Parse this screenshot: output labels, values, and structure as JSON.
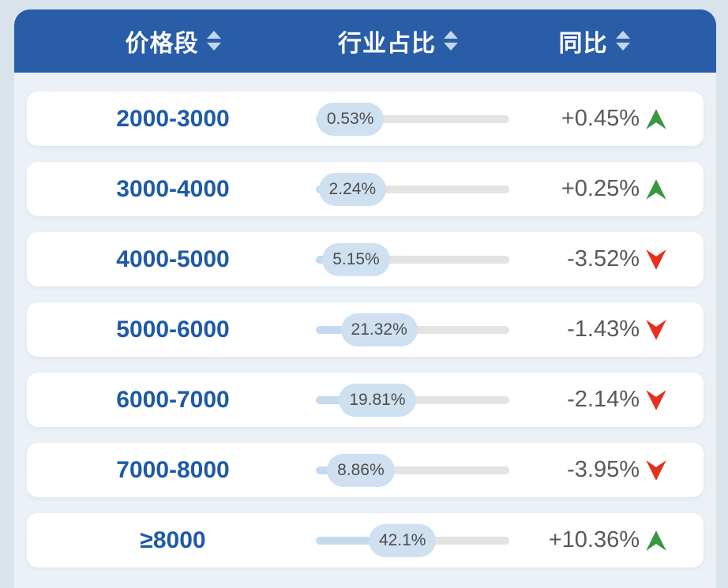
{
  "header": {
    "columns": [
      {
        "label": "价格段"
      },
      {
        "label": "行业占比"
      },
      {
        "label": "同比"
      }
    ]
  },
  "rows": [
    {
      "price_range": "2000-3000",
      "share_label": "0.53%",
      "share_pct": 0.53,
      "yoy_label": "+0.45%",
      "trend": "up"
    },
    {
      "price_range": "3000-4000",
      "share_label": "2.24%",
      "share_pct": 2.24,
      "yoy_label": "+0.25%",
      "trend": "up"
    },
    {
      "price_range": "4000-5000",
      "share_label": "5.15%",
      "share_pct": 5.15,
      "yoy_label": "-3.52%",
      "trend": "down"
    },
    {
      "price_range": "5000-6000",
      "share_label": "21.32%",
      "share_pct": 21.32,
      "yoy_label": "-1.43%",
      "trend": "down"
    },
    {
      "price_range": "6000-7000",
      "share_label": "19.81%",
      "share_pct": 19.81,
      "yoy_label": "-2.14%",
      "trend": "down"
    },
    {
      "price_range": "7000-8000",
      "share_label": "8.86%",
      "share_pct": 8.86,
      "yoy_label": "-3.95%",
      "trend": "down"
    },
    {
      "price_range": "≥8000",
      "share_label": "42.1%",
      "share_pct": 42.1,
      "yoy_label": "+10.36%",
      "trend": "up"
    }
  ],
  "colors": {
    "header_bg": "#2a5da8",
    "panel_bg": "#ebf1f7",
    "page_bg": "#d9e3ec",
    "price_text": "#1e5aa8",
    "value_text": "#595959",
    "trend_up": "#3a9643",
    "trend_down": "#e5301f",
    "bar_track": "#e3e3e3",
    "bar_fill": "#c6daee",
    "pill_bg": "#cfe0f1"
  },
  "chart_data": {
    "type": "table",
    "columns": [
      "价格段",
      "行业占比",
      "同比"
    ],
    "rows": [
      {
        "price_range": "2000-3000",
        "industry_share_pct": 0.53,
        "yoy_change_pct": 0.45
      },
      {
        "price_range": "3000-4000",
        "industry_share_pct": 2.24,
        "yoy_change_pct": 0.25
      },
      {
        "price_range": "4000-5000",
        "industry_share_pct": 5.15,
        "yoy_change_pct": -3.52
      },
      {
        "price_range": "5000-6000",
        "industry_share_pct": 21.32,
        "yoy_change_pct": -1.43
      },
      {
        "price_range": "6000-7000",
        "industry_share_pct": 19.81,
        "yoy_change_pct": -2.14
      },
      {
        "price_range": "7000-8000",
        "industry_share_pct": 8.86,
        "yoy_change_pct": -3.95
      },
      {
        "price_range": "≥8000",
        "industry_share_pct": 42.1,
        "yoy_change_pct": 10.36
      }
    ],
    "notes": "share bar scale 0-100%, pill slides along track like slider thumb"
  }
}
